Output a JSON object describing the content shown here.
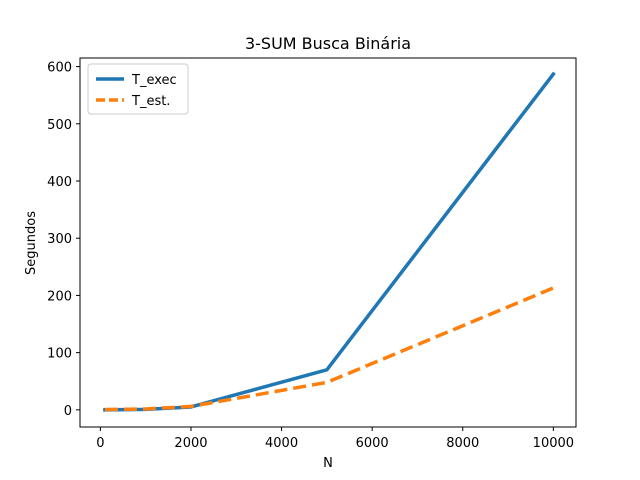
{
  "chart_data": {
    "type": "line",
    "title": "3-SUM Busca Binária",
    "xlabel": "N",
    "ylabel": "Segundos",
    "xlim": [
      -450,
      10500
    ],
    "ylim": [
      -30,
      615
    ],
    "xticks": [
      0,
      2000,
      4000,
      6000,
      8000,
      10000
    ],
    "yticks": [
      0,
      100,
      200,
      300,
      400,
      500,
      600
    ],
    "grid": false,
    "legend_position": "top-left",
    "series": [
      {
        "name": "T_exec",
        "x": [
          100,
          1000,
          2000,
          5000,
          10000
        ],
        "y": [
          0.05,
          0.8,
          5,
          70,
          587
        ],
        "color": "#1f77b4",
        "line_style": "solid"
      },
      {
        "name": "T_est.",
        "x": [
          100,
          1000,
          2000,
          5000,
          10000
        ],
        "y": [
          0.5,
          1.5,
          6,
          48,
          213
        ],
        "color": "#ff7f0e",
        "line_style": "dashed"
      }
    ]
  }
}
